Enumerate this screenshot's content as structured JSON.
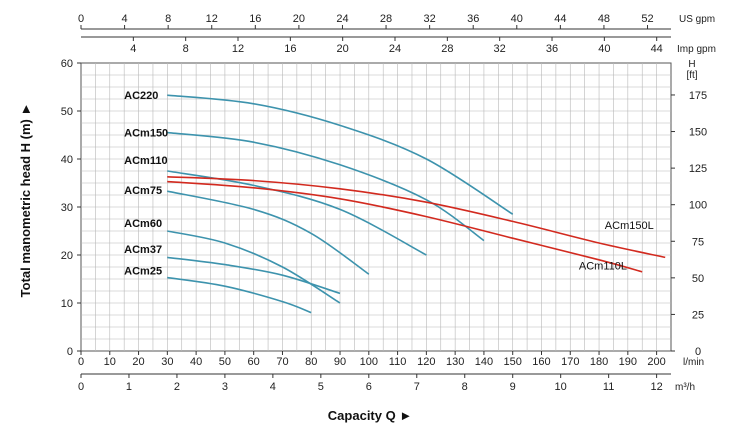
{
  "chart_data": {
    "type": "line",
    "xlabel": "Capacity Q ►",
    "ylabel": "Total manometric head H (m) ►",
    "xlim": [
      0,
      205
    ],
    "ylim": [
      0,
      60
    ],
    "grid": true,
    "axes": {
      "bottom_lpm": {
        "unit": "l/min",
        "ticks": [
          0,
          10,
          20,
          30,
          40,
          50,
          60,
          70,
          80,
          90,
          100,
          110,
          120,
          130,
          140,
          150,
          160,
          170,
          180,
          190,
          200
        ]
      },
      "bottom_m3h": {
        "unit": "m³/h",
        "ticks": [
          0,
          1,
          2,
          3,
          4,
          5,
          6,
          7,
          8,
          9,
          10,
          11,
          12
        ]
      },
      "top_usgpm": {
        "unit": "US gpm",
        "ticks": [
          0,
          4,
          8,
          12,
          16,
          20,
          24,
          28,
          32,
          36,
          40,
          44,
          48,
          52
        ]
      },
      "top_impgpm": {
        "unit": "Imp gpm",
        "ticks": [
          4,
          8,
          12,
          16,
          20,
          24,
          28,
          32,
          36,
          40,
          44
        ]
      },
      "left_m": {
        "ticks": [
          0,
          10,
          20,
          30,
          40,
          50,
          60
        ]
      },
      "right_ft": {
        "title": "H",
        "unit": "[ft]",
        "ticks": [
          0,
          25,
          50,
          75,
          100,
          125,
          150,
          175
        ]
      }
    },
    "series": [
      {
        "name": "AC220",
        "color": "#3d93ad",
        "x": [
          30,
          60,
          90,
          120,
          150
        ],
        "y": [
          53.3,
          51.5,
          47,
          40,
          28.5
        ]
      },
      {
        "name": "ACm150",
        "color": "#3d93ad",
        "x": [
          30,
          60,
          90,
          120,
          140
        ],
        "y": [
          45.5,
          43.5,
          38.8,
          31.5,
          23
        ]
      },
      {
        "name": "ACm110",
        "color": "#3d93ad",
        "x": [
          30,
          60,
          90,
          120
        ],
        "y": [
          37.5,
          34.5,
          29.5,
          20
        ]
      },
      {
        "name": "ACm75",
        "color": "#3d93ad",
        "x": [
          30,
          60,
          80,
          100
        ],
        "y": [
          33.3,
          29.5,
          24.5,
          16
        ]
      },
      {
        "name": "ACm60",
        "color": "#3d93ad",
        "x": [
          30,
          50,
          70,
          90
        ],
        "y": [
          25,
          22.5,
          17.5,
          10
        ]
      },
      {
        "name": "ACm37",
        "color": "#3d93ad",
        "x": [
          30,
          50,
          70,
          90
        ],
        "y": [
          19.5,
          18,
          15.8,
          12
        ]
      },
      {
        "name": "ACm25",
        "color": "#3d93ad",
        "x": [
          30,
          50,
          70,
          80
        ],
        "y": [
          15.3,
          13.5,
          10.3,
          8
        ]
      },
      {
        "name": "ACm150L",
        "color": "#d22a1f",
        "x": [
          30,
          60,
          90,
          120,
          150,
          180,
          203
        ],
        "y": [
          36.3,
          35.5,
          33.8,
          31,
          27,
          22.5,
          19.5
        ]
      },
      {
        "name": "ACm110L",
        "color": "#d22a1f",
        "x": [
          30,
          60,
          90,
          120,
          150,
          180,
          195
        ],
        "y": [
          35.3,
          34,
          31.7,
          28,
          23.5,
          19,
          16.5
        ]
      }
    ],
    "label_positions": {
      "AC220": [
        15,
        53.3
      ],
      "ACm150": [
        15,
        45.5
      ],
      "ACm110": [
        15,
        39.8
      ],
      "ACm75": [
        15,
        33.5
      ],
      "ACm60": [
        15,
        26.7
      ],
      "ACm37": [
        15,
        21.2
      ],
      "ACm25": [
        15,
        16.8
      ],
      "ACm150L": [
        182,
        26.3
      ],
      "ACm110L": [
        173,
        17.8
      ]
    }
  }
}
